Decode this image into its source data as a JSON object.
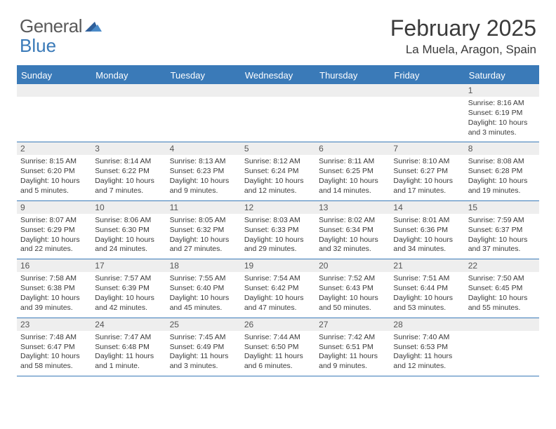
{
  "logo": {
    "text1": "General",
    "text2": "Blue"
  },
  "title": "February 2025",
  "location": "La Muela, Aragon, Spain",
  "colors": {
    "header_bg": "#3a7ab8",
    "header_text": "#ffffff",
    "daynum_bg": "#eeeeee",
    "border": "#3a7ab8",
    "body_text": "#3a3a3a"
  },
  "dayHeaders": [
    "Sunday",
    "Monday",
    "Tuesday",
    "Wednesday",
    "Thursday",
    "Friday",
    "Saturday"
  ],
  "weeks": [
    {
      "nums": [
        "",
        "",
        "",
        "",
        "",
        "",
        "1"
      ],
      "cells": [
        null,
        null,
        null,
        null,
        null,
        null,
        {
          "sunrise": "Sunrise: 8:16 AM",
          "sunset": "Sunset: 6:19 PM",
          "daylight": "Daylight: 10 hours and 3 minutes."
        }
      ]
    },
    {
      "nums": [
        "2",
        "3",
        "4",
        "5",
        "6",
        "7",
        "8"
      ],
      "cells": [
        {
          "sunrise": "Sunrise: 8:15 AM",
          "sunset": "Sunset: 6:20 PM",
          "daylight": "Daylight: 10 hours and 5 minutes."
        },
        {
          "sunrise": "Sunrise: 8:14 AM",
          "sunset": "Sunset: 6:22 PM",
          "daylight": "Daylight: 10 hours and 7 minutes."
        },
        {
          "sunrise": "Sunrise: 8:13 AM",
          "sunset": "Sunset: 6:23 PM",
          "daylight": "Daylight: 10 hours and 9 minutes."
        },
        {
          "sunrise": "Sunrise: 8:12 AM",
          "sunset": "Sunset: 6:24 PM",
          "daylight": "Daylight: 10 hours and 12 minutes."
        },
        {
          "sunrise": "Sunrise: 8:11 AM",
          "sunset": "Sunset: 6:25 PM",
          "daylight": "Daylight: 10 hours and 14 minutes."
        },
        {
          "sunrise": "Sunrise: 8:10 AM",
          "sunset": "Sunset: 6:27 PM",
          "daylight": "Daylight: 10 hours and 17 minutes."
        },
        {
          "sunrise": "Sunrise: 8:08 AM",
          "sunset": "Sunset: 6:28 PM",
          "daylight": "Daylight: 10 hours and 19 minutes."
        }
      ]
    },
    {
      "nums": [
        "9",
        "10",
        "11",
        "12",
        "13",
        "14",
        "15"
      ],
      "cells": [
        {
          "sunrise": "Sunrise: 8:07 AM",
          "sunset": "Sunset: 6:29 PM",
          "daylight": "Daylight: 10 hours and 22 minutes."
        },
        {
          "sunrise": "Sunrise: 8:06 AM",
          "sunset": "Sunset: 6:30 PM",
          "daylight": "Daylight: 10 hours and 24 minutes."
        },
        {
          "sunrise": "Sunrise: 8:05 AM",
          "sunset": "Sunset: 6:32 PM",
          "daylight": "Daylight: 10 hours and 27 minutes."
        },
        {
          "sunrise": "Sunrise: 8:03 AM",
          "sunset": "Sunset: 6:33 PM",
          "daylight": "Daylight: 10 hours and 29 minutes."
        },
        {
          "sunrise": "Sunrise: 8:02 AM",
          "sunset": "Sunset: 6:34 PM",
          "daylight": "Daylight: 10 hours and 32 minutes."
        },
        {
          "sunrise": "Sunrise: 8:01 AM",
          "sunset": "Sunset: 6:36 PM",
          "daylight": "Daylight: 10 hours and 34 minutes."
        },
        {
          "sunrise": "Sunrise: 7:59 AM",
          "sunset": "Sunset: 6:37 PM",
          "daylight": "Daylight: 10 hours and 37 minutes."
        }
      ]
    },
    {
      "nums": [
        "16",
        "17",
        "18",
        "19",
        "20",
        "21",
        "22"
      ],
      "cells": [
        {
          "sunrise": "Sunrise: 7:58 AM",
          "sunset": "Sunset: 6:38 PM",
          "daylight": "Daylight: 10 hours and 39 minutes."
        },
        {
          "sunrise": "Sunrise: 7:57 AM",
          "sunset": "Sunset: 6:39 PM",
          "daylight": "Daylight: 10 hours and 42 minutes."
        },
        {
          "sunrise": "Sunrise: 7:55 AM",
          "sunset": "Sunset: 6:40 PM",
          "daylight": "Daylight: 10 hours and 45 minutes."
        },
        {
          "sunrise": "Sunrise: 7:54 AM",
          "sunset": "Sunset: 6:42 PM",
          "daylight": "Daylight: 10 hours and 47 minutes."
        },
        {
          "sunrise": "Sunrise: 7:52 AM",
          "sunset": "Sunset: 6:43 PM",
          "daylight": "Daylight: 10 hours and 50 minutes."
        },
        {
          "sunrise": "Sunrise: 7:51 AM",
          "sunset": "Sunset: 6:44 PM",
          "daylight": "Daylight: 10 hours and 53 minutes."
        },
        {
          "sunrise": "Sunrise: 7:50 AM",
          "sunset": "Sunset: 6:45 PM",
          "daylight": "Daylight: 10 hours and 55 minutes."
        }
      ]
    },
    {
      "nums": [
        "23",
        "24",
        "25",
        "26",
        "27",
        "28",
        ""
      ],
      "cells": [
        {
          "sunrise": "Sunrise: 7:48 AM",
          "sunset": "Sunset: 6:47 PM",
          "daylight": "Daylight: 10 hours and 58 minutes."
        },
        {
          "sunrise": "Sunrise: 7:47 AM",
          "sunset": "Sunset: 6:48 PM",
          "daylight": "Daylight: 11 hours and 1 minute."
        },
        {
          "sunrise": "Sunrise: 7:45 AM",
          "sunset": "Sunset: 6:49 PM",
          "daylight": "Daylight: 11 hours and 3 minutes."
        },
        {
          "sunrise": "Sunrise: 7:44 AM",
          "sunset": "Sunset: 6:50 PM",
          "daylight": "Daylight: 11 hours and 6 minutes."
        },
        {
          "sunrise": "Sunrise: 7:42 AM",
          "sunset": "Sunset: 6:51 PM",
          "daylight": "Daylight: 11 hours and 9 minutes."
        },
        {
          "sunrise": "Sunrise: 7:40 AM",
          "sunset": "Sunset: 6:53 PM",
          "daylight": "Daylight: 11 hours and 12 minutes."
        },
        null
      ]
    }
  ]
}
